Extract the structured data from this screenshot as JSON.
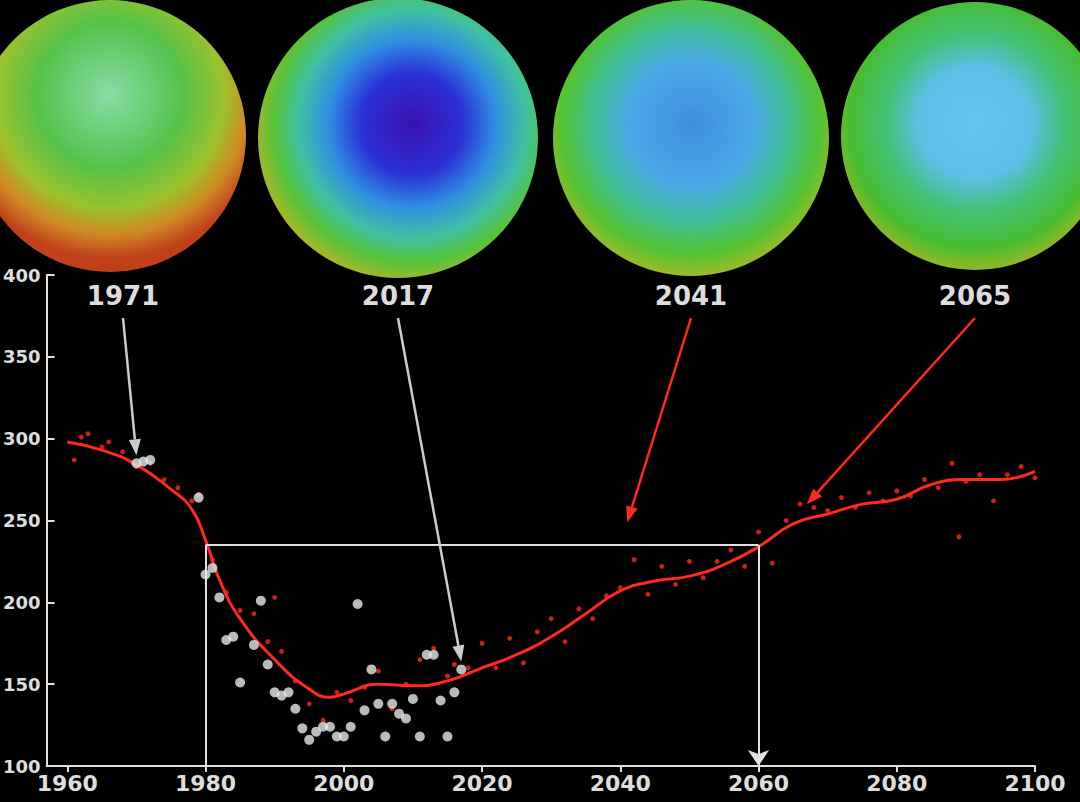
{
  "chart_data": {
    "type": "line",
    "xlim": [
      1957,
      2100
    ],
    "xticks": [
      1960,
      1980,
      2000,
      2020,
      2040,
      2060,
      2080,
      2100
    ],
    "ylim": [
      100,
      400
    ],
    "yticks": [
      100,
      150,
      200,
      250,
      300,
      350,
      400
    ],
    "grid": false,
    "series": [
      {
        "type": "line",
        "color": "#ff2a1a",
        "line_style": "solid",
        "x": [
          1960,
          1965,
          1970,
          1975,
          1978,
          1980,
          1982,
          1985,
          1990,
          1995,
          1998,
          2000,
          2005,
          2010,
          2015,
          2020,
          2025,
          2030,
          2035,
          2040,
          2045,
          2050,
          2055,
          2060,
          2065,
          2070,
          2075,
          2080,
          2085,
          2090,
          2095,
          2100
        ],
        "values": [
          298,
          293,
          284,
          269,
          257,
          238,
          214,
          190,
          165,
          147,
          142,
          144,
          150,
          149,
          152,
          160,
          168,
          179,
          193,
          207,
          213,
          216,
          223,
          234,
          248,
          254,
          260,
          263,
          272,
          275,
          275,
          280
        ]
      },
      {
        "type": "scatter",
        "color": "#ff2a1a",
        "marker": "circle",
        "x": [
          1961,
          1962,
          1963,
          1965,
          1966,
          1968,
          1970,
          1972,
          1974,
          1976,
          1978,
          1979,
          1981,
          1983,
          1985,
          1987,
          1989,
          1990,
          1991,
          1993,
          1995,
          1997,
          1999,
          2001,
          2003,
          2005,
          2007,
          2009,
          2011,
          2013,
          2015,
          2016,
          2018,
          2020,
          2022,
          2024,
          2026,
          2028,
          2030,
          2032,
          2034,
          2036,
          2038,
          2040,
          2042,
          2044,
          2046,
          2048,
          2050,
          2052,
          2054,
          2056,
          2058,
          2060,
          2062,
          2064,
          2066,
          2068,
          2070,
          2072,
          2074,
          2076,
          2078,
          2080,
          2082,
          2084,
          2086,
          2088,
          2089,
          2090,
          2092,
          2094,
          2096,
          2098,
          2100
        ],
        "values": [
          287,
          301,
          303,
          295,
          298,
          292,
          283,
          285,
          275,
          270,
          262,
          266,
          226,
          206,
          195,
          193,
          176,
          203,
          170,
          152,
          138,
          128,
          145,
          140,
          148,
          158,
          135,
          150,
          165,
          172,
          155,
          162,
          160,
          175,
          160,
          178,
          163,
          182,
          190,
          176,
          196,
          190,
          204,
          209,
          226,
          205,
          222,
          211,
          225,
          215,
          225,
          232,
          222,
          243,
          224,
          250,
          260,
          258,
          256,
          264,
          258,
          267,
          262,
          268,
          265,
          275,
          270,
          285,
          240,
          274,
          278,
          262,
          278,
          283,
          276
        ]
      },
      {
        "type": "scatter",
        "color": "#e8e8e8",
        "marker": "circle",
        "x": [
          1970,
          1971,
          1972,
          1979,
          1980,
          1981,
          1982,
          1983,
          1984,
          1985,
          1987,
          1988,
          1989,
          1990,
          1991,
          1992,
          1993,
          1994,
          1995,
          1996,
          1997,
          1998,
          1999,
          2000,
          2001,
          2002,
          2003,
          2004,
          2005,
          2006,
          2007,
          2008,
          2009,
          2010,
          2011,
          2012,
          2013,
          2014,
          2015,
          2016,
          2017
        ],
        "values": [
          285,
          286,
          287,
          264,
          217,
          221,
          203,
          177,
          179,
          151,
          174,
          201,
          162,
          145,
          143,
          145,
          135,
          123,
          116,
          121,
          124,
          124,
          118,
          118,
          124,
          199,
          134,
          159,
          138,
          118,
          138,
          132,
          129,
          141,
          118,
          168,
          168,
          140,
          118,
          145,
          159
        ]
      }
    ],
    "annotations": [
      {
        "text": "1971",
        "x": 1970,
        "y": 285
      },
      {
        "text": "2017",
        "x": 2017,
        "y": 159
      },
      {
        "text": "2041",
        "x": 2041,
        "y": 244
      },
      {
        "text": "2065",
        "x": 2067,
        "y": 255
      }
    ],
    "reference": {
      "x": [
        1980,
        2060
      ],
      "y": 235
    }
  }
}
